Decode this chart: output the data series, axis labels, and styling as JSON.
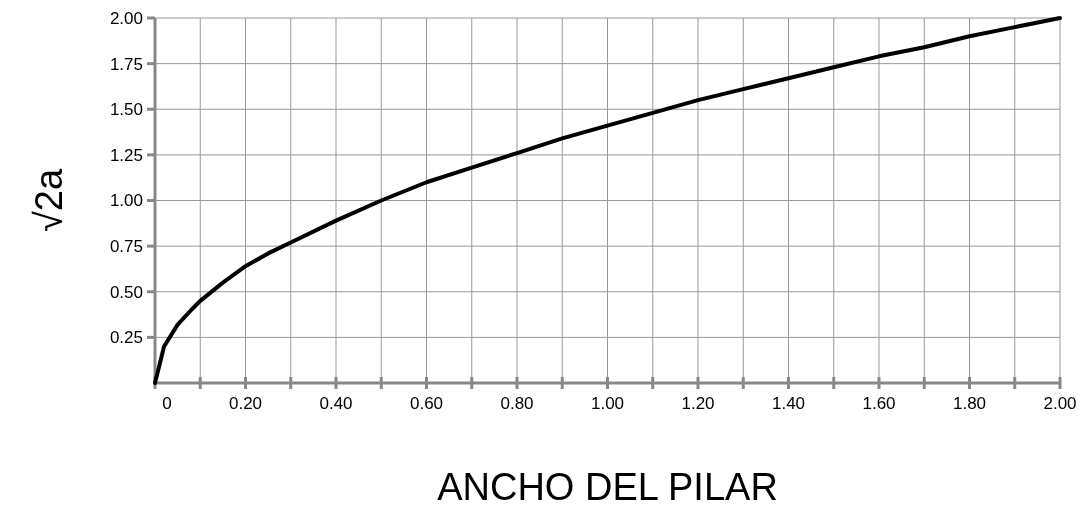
{
  "chart_data": {
    "type": "line",
    "xlabel": "ANCHO DEL PILAR",
    "ylabel": "√2a",
    "x": [
      0,
      0.02,
      0.05,
      0.08,
      0.1,
      0.15,
      0.2,
      0.25,
      0.3,
      0.4,
      0.5,
      0.6,
      0.7,
      0.8,
      0.9,
      1.0,
      1.1,
      1.2,
      1.3,
      1.4,
      1.5,
      1.6,
      1.7,
      1.8,
      1.9,
      2.0
    ],
    "series": [
      {
        "color": "#000000",
        "values": [
          0,
          0.2,
          0.32,
          0.4,
          0.45,
          0.55,
          0.64,
          0.71,
          0.77,
          0.89,
          1.0,
          1.1,
          1.18,
          1.26,
          1.34,
          1.41,
          1.48,
          1.55,
          1.61,
          1.67,
          1.73,
          1.79,
          1.84,
          1.9,
          1.95,
          2.0
        ]
      }
    ],
    "xlim": [
      0,
      2
    ],
    "ylim": [
      0,
      2
    ],
    "xticks": [
      {
        "value": 0,
        "label": "0"
      },
      {
        "value": 0.1,
        "label": null
      },
      {
        "value": 0.2,
        "label": "0.20"
      },
      {
        "value": 0.3,
        "label": null
      },
      {
        "value": 0.4,
        "label": "0.40"
      },
      {
        "value": 0.5,
        "label": null
      },
      {
        "value": 0.6,
        "label": "0.60"
      },
      {
        "value": 0.7,
        "label": null
      },
      {
        "value": 0.8,
        "label": "0.80"
      },
      {
        "value": 0.9,
        "label": null
      },
      {
        "value": 1.0,
        "label": "1.00"
      },
      {
        "value": 1.1,
        "label": null
      },
      {
        "value": 1.2,
        "label": "1.20"
      },
      {
        "value": 1.3,
        "label": null
      },
      {
        "value": 1.4,
        "label": "1.40"
      },
      {
        "value": 1.5,
        "label": null
      },
      {
        "value": 1.6,
        "label": "1.60"
      },
      {
        "value": 1.7,
        "label": null
      },
      {
        "value": 1.8,
        "label": "1.80"
      },
      {
        "value": 1.9,
        "label": null
      },
      {
        "value": 2.0,
        "label": "2.00"
      }
    ],
    "yticks": [
      {
        "value": 0.25,
        "label": "0.25"
      },
      {
        "value": 0.5,
        "label": "0.50"
      },
      {
        "value": 0.75,
        "label": "0.75"
      },
      {
        "value": 1.0,
        "label": "1.00"
      },
      {
        "value": 1.25,
        "label": "1.25"
      },
      {
        "value": 1.5,
        "label": "1.50"
      },
      {
        "value": 1.75,
        "label": "1.75"
      },
      {
        "value": 2.0,
        "label": "2.00"
      }
    ],
    "grid": true,
    "marker": "none",
    "line_style": "solid"
  }
}
